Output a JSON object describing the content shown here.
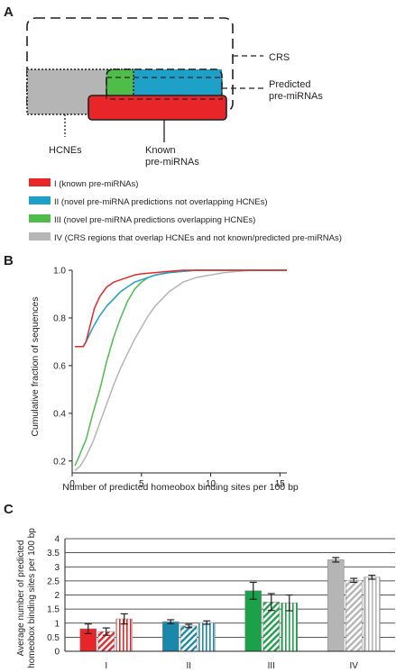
{
  "panelA": {
    "label": "A",
    "crs": "CRS",
    "predicted": [
      "Predicted",
      "pre-miRNAs"
    ],
    "hcnes": "HCNEs",
    "known": [
      "Known",
      "pre-miRNAs"
    ],
    "legend": [
      {
        "color": "#e8262a",
        "text": "I (known pre-miRNAs)"
      },
      {
        "color": "#1ea1c9",
        "text": "II (novel pre-miRNA predictions not overlapping HCNEs)"
      },
      {
        "color": "#4ebd4a",
        "text": "III (novel pre-miRNA predictions overlapping HCNEs)"
      },
      {
        "color": "#b5b5b5",
        "text": "IV (CRS regions that overlap HCNEs and not known/predicted pre-miRNAs)"
      }
    ]
  },
  "panelB": {
    "label": "B",
    "chart_data": {
      "type": "line",
      "xlabel": "Number of predicted homeobox binding sites per 100 bp",
      "ylabel": "Cumulative fraction of sequences",
      "xlim": [
        0,
        15.5
      ],
      "ylim": [
        0.15,
        1.0
      ],
      "xticks": [
        0,
        5,
        10,
        15
      ],
      "yticks": [
        0.2,
        0.4,
        0.6,
        0.8,
        1.0
      ],
      "ytick_labels": [
        "0.2",
        "0.4",
        "0.6",
        "0.8",
        "1.0"
      ],
      "series": [
        {
          "color": "#b5b5b5",
          "x": [
            0.2,
            0.6,
            1.0,
            1.5,
            2.0,
            2.5,
            3.0,
            3.5,
            4.0,
            4.5,
            5.0,
            5.5,
            6.0,
            6.5,
            7.0,
            8.0,
            9.0,
            10.0,
            11.0,
            12.0,
            13.0,
            14.0,
            15.5
          ],
          "y": [
            0.16,
            0.18,
            0.22,
            0.28,
            0.36,
            0.44,
            0.52,
            0.59,
            0.65,
            0.71,
            0.76,
            0.81,
            0.85,
            0.88,
            0.91,
            0.95,
            0.97,
            0.98,
            0.99,
            0.995,
            1.0,
            1.0,
            1.0
          ]
        },
        {
          "color": "#4ebd4a",
          "x": [
            0.2,
            0.5,
            1.0,
            1.5,
            2.0,
            2.5,
            3.0,
            3.5,
            4.0,
            4.5,
            5.0,
            5.5,
            6.0,
            7.0,
            8.0,
            9.0,
            10.0,
            12.0,
            15.5
          ],
          "y": [
            0.18,
            0.22,
            0.29,
            0.4,
            0.5,
            0.62,
            0.72,
            0.8,
            0.87,
            0.92,
            0.95,
            0.97,
            0.98,
            0.99,
            0.995,
            1.0,
            1.0,
            1.0,
            1.0
          ]
        },
        {
          "color": "#1ea1c9",
          "x": [
            0.2,
            0.8,
            1.0,
            1.5,
            2.0,
            2.5,
            3.0,
            3.5,
            4.0,
            4.5,
            5.0,
            5.5,
            6.0,
            7.0,
            8.0,
            9.0,
            10.0,
            12.0,
            15.5
          ],
          "y": [
            0.68,
            0.68,
            0.7,
            0.76,
            0.81,
            0.85,
            0.88,
            0.91,
            0.93,
            0.95,
            0.96,
            0.97,
            0.98,
            0.99,
            0.995,
            1.0,
            1.0,
            1.0,
            1.0
          ]
        },
        {
          "color": "#e8262a",
          "x": [
            0.2,
            0.8,
            1.0,
            1.3,
            1.6,
            2.0,
            2.5,
            3.0,
            3.5,
            4.0,
            4.5,
            5.0,
            6.0,
            7.0,
            8.0,
            9.0,
            10.0,
            12.0,
            15.5
          ],
          "y": [
            0.68,
            0.68,
            0.7,
            0.77,
            0.84,
            0.89,
            0.93,
            0.95,
            0.96,
            0.97,
            0.98,
            0.985,
            0.99,
            0.995,
            1.0,
            1.0,
            1.0,
            1.0,
            1.0
          ]
        }
      ]
    }
  },
  "panelC": {
    "label": "C",
    "chart_data": {
      "type": "bar",
      "ylabel": "Average number of predicted homeobox binding sites per 100 bp",
      "ylabel_lines": [
        "Average number of predicted",
        "homeobox binding sites per 100 bp"
      ],
      "ylim": [
        0,
        4
      ],
      "yticks": [
        0,
        0.5,
        1,
        1.5,
        2,
        2.5,
        3,
        3.5,
        4
      ],
      "ytick_labels": [
        "0",
        "0.5",
        "1",
        "1.5",
        "2",
        "2.5",
        "3",
        "3.5",
        "4"
      ],
      "categories": [
        "I",
        "II",
        "III",
        "IV"
      ],
      "colors": [
        "#e8262a",
        "#1a88ab",
        "#1aa149",
        "#b5b5b5"
      ],
      "bar_styles": [
        "solid",
        "diagonal-hatch",
        "vertical-stripe"
      ],
      "values": [
        [
          0.8,
          0.7,
          1.15
        ],
        [
          1.05,
          0.9,
          1.02
        ],
        [
          2.15,
          1.75,
          1.72
        ],
        [
          3.25,
          2.52,
          2.63
        ]
      ],
      "errors": [
        [
          0.17,
          0.13,
          0.18
        ],
        [
          0.07,
          0.06,
          0.06
        ],
        [
          0.3,
          0.3,
          0.28
        ],
        [
          0.08,
          0.07,
          0.07
        ]
      ]
    }
  }
}
